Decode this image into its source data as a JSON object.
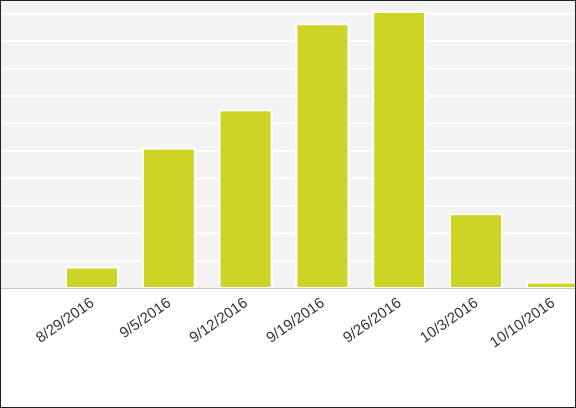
{
  "chart_data": {
    "type": "bar",
    "categories": [
      "8/29/2016",
      "9/5/2016",
      "9/12/2016",
      "9/19/2016",
      "9/26/2016",
      "10/3/2016",
      "10/10/2016"
    ],
    "values": [
      7.5,
      51,
      65,
      96.5,
      101,
      27,
      2
    ],
    "ylim": [
      0,
      105
    ],
    "grid": true,
    "bar_color": "#cdd426",
    "plot_background": "#f3f3f3",
    "grid_color": "#ffffff",
    "tick_label_color": "#333333"
  }
}
